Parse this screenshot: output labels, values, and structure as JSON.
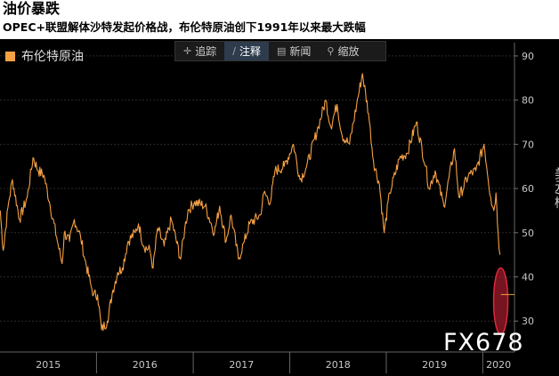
{
  "header": {
    "title": "油价暴跌",
    "subtitle": "OPEC+联盟解体沙特发起价格战，布伦特原油创下1991年以来最大跌幅"
  },
  "toolbar": {
    "items": [
      {
        "label": "追踪",
        "icon": "crosshair-icon",
        "glyph": "✛"
      },
      {
        "label": "注释",
        "icon": "pencil-icon",
        "glyph": "∕"
      },
      {
        "label": "新闻",
        "icon": "news-icon",
        "glyph": "▤"
      },
      {
        "label": "缩放",
        "icon": "zoom-icon",
        "glyph": "⚲"
      }
    ]
  },
  "watermark": "FX678",
  "colors": {
    "line": "#f5a043",
    "highlight": "#e0283c",
    "highlight_fill": "#9e1b2a",
    "grid": "#2a2a2a",
    "axis_text": "#c8c8c8"
  },
  "chart_data": {
    "type": "line",
    "series": [
      {
        "name": "布伦特原油",
        "points": [
          [
            "2015-01-02",
            55
          ],
          [
            "2015-01-13",
            46
          ],
          [
            "2015-02-03",
            57
          ],
          [
            "2015-02-17",
            62
          ],
          [
            "2015-03-16",
            53
          ],
          [
            "2015-04-14",
            58
          ],
          [
            "2015-05-06",
            67
          ],
          [
            "2015-05-26",
            64
          ],
          [
            "2015-06-16",
            63
          ],
          [
            "2015-07-07",
            57
          ],
          [
            "2015-08-03",
            49
          ],
          [
            "2015-08-24",
            43
          ],
          [
            "2015-09-01",
            50
          ],
          [
            "2015-09-21",
            48
          ],
          [
            "2015-10-09",
            53
          ],
          [
            "2015-11-02",
            49
          ],
          [
            "2015-11-18",
            44
          ],
          [
            "2015-12-11",
            38
          ],
          [
            "2015-12-21",
            36
          ],
          [
            "2016-01-05",
            36
          ],
          [
            "2016-01-20",
            28
          ],
          [
            "2016-02-11",
            30
          ],
          [
            "2016-03-03",
            37
          ],
          [
            "2016-03-21",
            41
          ],
          [
            "2016-04-08",
            42
          ],
          [
            "2016-04-29",
            48
          ],
          [
            "2016-05-26",
            50
          ],
          [
            "2016-06-08",
            52
          ],
          [
            "2016-06-27",
            47
          ],
          [
            "2016-07-21",
            46
          ],
          [
            "2016-08-02",
            42
          ],
          [
            "2016-08-19",
            51
          ],
          [
            "2016-09-13",
            47
          ],
          [
            "2016-10-10",
            53
          ],
          [
            "2016-11-14",
            44
          ],
          [
            "2016-11-30",
            51
          ],
          [
            "2016-12-12",
            55
          ],
          [
            "2017-01-06",
            57
          ],
          [
            "2017-02-15",
            56
          ],
          [
            "2017-03-22",
            50
          ],
          [
            "2017-04-11",
            56
          ],
          [
            "2017-05-05",
            48
          ],
          [
            "2017-05-24",
            54
          ],
          [
            "2017-06-21",
            44
          ],
          [
            "2017-07-13",
            48
          ],
          [
            "2017-08-02",
            52
          ],
          [
            "2017-09-12",
            54
          ],
          [
            "2017-09-25",
            59
          ],
          [
            "2017-10-20",
            57
          ],
          [
            "2017-11-06",
            64
          ],
          [
            "2017-12-11",
            65
          ],
          [
            "2018-01-15",
            70
          ],
          [
            "2018-02-09",
            62
          ],
          [
            "2018-03-06",
            65
          ],
          [
            "2018-04-19",
            74
          ],
          [
            "2018-05-17",
            80
          ],
          [
            "2018-06-05",
            74
          ],
          [
            "2018-06-29",
            79
          ],
          [
            "2018-07-18",
            72
          ],
          [
            "2018-08-15",
            70
          ],
          [
            "2018-09-11",
            79
          ],
          [
            "2018-10-03",
            86
          ],
          [
            "2018-10-26",
            77
          ],
          [
            "2018-11-14",
            66
          ],
          [
            "2018-12-06",
            61
          ],
          [
            "2018-12-24",
            50
          ],
          [
            "2019-01-14",
            59
          ],
          [
            "2019-02-21",
            67
          ],
          [
            "2019-03-21",
            68
          ],
          [
            "2019-04-25",
            75
          ],
          [
            "2019-05-30",
            65
          ],
          [
            "2019-06-12",
            60
          ],
          [
            "2019-07-05",
            64
          ],
          [
            "2019-08-07",
            56
          ],
          [
            "2019-09-16",
            69
          ],
          [
            "2019-10-03",
            58
          ],
          [
            "2019-11-08",
            63
          ],
          [
            "2019-12-06",
            64
          ],
          [
            "2020-01-06",
            70
          ],
          [
            "2020-01-31",
            58
          ],
          [
            "2020-02-12",
            55
          ],
          [
            "2020-02-20",
            59
          ],
          [
            "2020-02-28",
            50
          ],
          [
            "2020-03-06",
            45
          ]
        ]
      }
    ],
    "xaxis": {
      "ticks": [
        "2015",
        "2016",
        "2017",
        "2018",
        "2019",
        "2020"
      ],
      "range": [
        "2015-01-01",
        "2020-04-30"
      ]
    },
    "yaxis": {
      "label": "美元/桶",
      "ticks": [
        30,
        40,
        50,
        60,
        70,
        80,
        90
      ],
      "range": [
        23,
        93
      ],
      "position": "right"
    },
    "annotations": [
      {
        "type": "ellipse-highlight",
        "x": "2020-03-09",
        "y_range": [
          27,
          42
        ],
        "value_marker": 36
      }
    ],
    "grid": true,
    "legend": "top-left"
  }
}
